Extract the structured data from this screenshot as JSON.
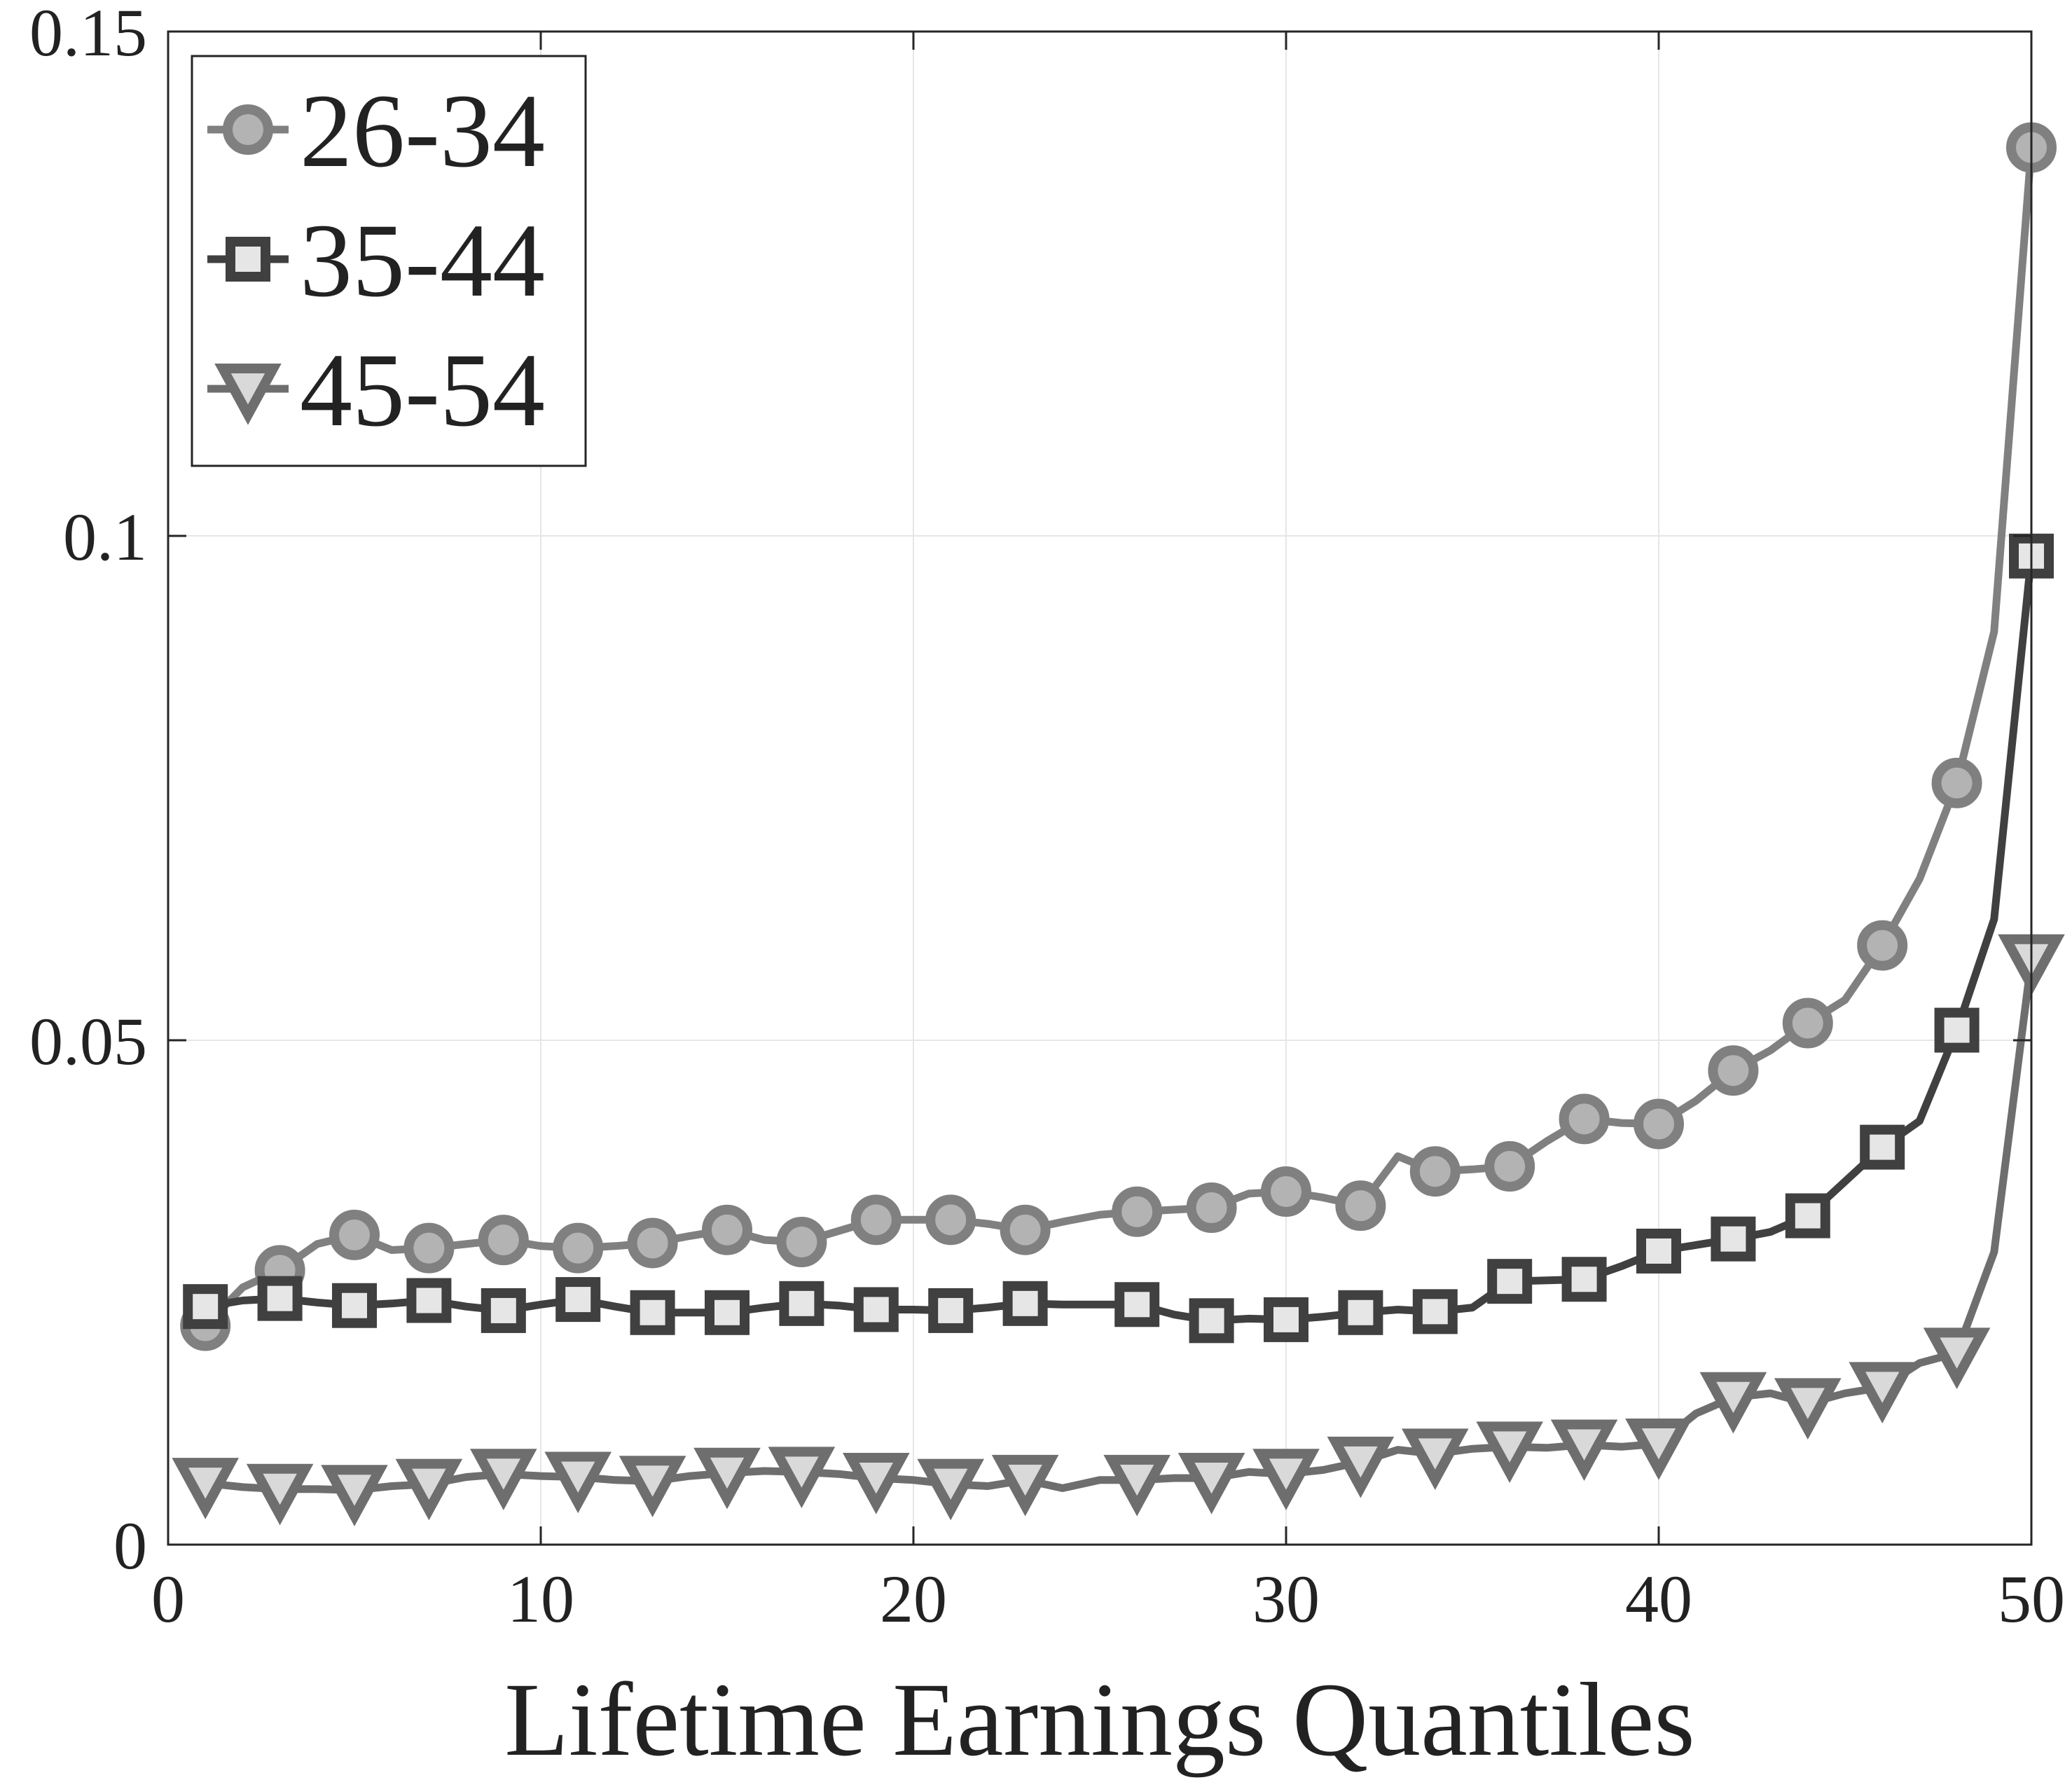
{
  "chart_data": {
    "type": "line",
    "xlabel": "Lifetime Earnings Quantiles",
    "ylabel": "",
    "title": "",
    "xlim": [
      0,
      50
    ],
    "ylim": [
      0,
      0.15
    ],
    "xticks": [
      0,
      10,
      20,
      30,
      40,
      50
    ],
    "xtick_labels": [
      "0",
      "10",
      "20",
      "30",
      "40",
      "50"
    ],
    "yticks": [
      0,
      0.05,
      0.1,
      0.15
    ],
    "ytick_labels": [
      "0",
      "0.05",
      "0.1",
      "0.15"
    ],
    "grid": true,
    "legend_position": "top-left",
    "series": [
      {
        "name": "26-34",
        "marker": "circle",
        "line_color": "#808080",
        "marker_fill": "#b3b3b3",
        "marker_edge": "#808080",
        "x": [
          1,
          2,
          3,
          4,
          5,
          6,
          7,
          8,
          9,
          10,
          11,
          12,
          13,
          14,
          15,
          16,
          17,
          18,
          19,
          20,
          21,
          22,
          23,
          24,
          25,
          26,
          27,
          28,
          29,
          30,
          31,
          32,
          33,
          34,
          35,
          36,
          37,
          38,
          39,
          40,
          41,
          42,
          43,
          44,
          45,
          46,
          47,
          48,
          49,
          50
        ],
        "y": [
          0.0217,
          0.0255,
          0.0272,
          0.0298,
          0.0307,
          0.0292,
          0.0294,
          0.0298,
          0.0302,
          0.0296,
          0.0294,
          0.0296,
          0.0299,
          0.0306,
          0.0312,
          0.0302,
          0.03,
          0.0311,
          0.0322,
          0.0322,
          0.0322,
          0.0318,
          0.0312,
          0.032,
          0.0327,
          0.033,
          0.0332,
          0.0334,
          0.0348,
          0.035,
          0.0344,
          0.0336,
          0.0385,
          0.037,
          0.0372,
          0.0375,
          0.04,
          0.0422,
          0.0418,
          0.0417,
          0.044,
          0.047,
          0.049,
          0.0517,
          0.054,
          0.0594,
          0.066,
          0.0755,
          0.0905,
          0.1385
        ],
        "marker_x": [
          1,
          3,
          5,
          7,
          9,
          11,
          13,
          15,
          17,
          19,
          21,
          23,
          26,
          28,
          30,
          32,
          34,
          36,
          38,
          40,
          42,
          44,
          46,
          48,
          50
        ],
        "marker_y": [
          0.0217,
          0.0272,
          0.0307,
          0.0294,
          0.0302,
          0.0294,
          0.0299,
          0.0312,
          0.03,
          0.0322,
          0.0322,
          0.0312,
          0.033,
          0.0334,
          0.035,
          0.0336,
          0.037,
          0.0375,
          0.0422,
          0.0417,
          0.047,
          0.0517,
          0.0594,
          0.0755,
          0.1385
        ]
      },
      {
        "name": "35-44",
        "marker": "square",
        "line_color": "#404040",
        "marker_fill": "#e6e6e6",
        "marker_edge": "#404040",
        "x": [
          1,
          2,
          3,
          4,
          5,
          6,
          7,
          8,
          9,
          10,
          11,
          12,
          13,
          14,
          15,
          16,
          17,
          18,
          19,
          20,
          21,
          22,
          23,
          24,
          25,
          26,
          27,
          28,
          29,
          30,
          31,
          32,
          33,
          34,
          35,
          36,
          37,
          38,
          39,
          40,
          41,
          42,
          43,
          44,
          45,
          46,
          47,
          48,
          49,
          50
        ],
        "y": [
          0.0236,
          0.0242,
          0.0244,
          0.024,
          0.0237,
          0.0239,
          0.0242,
          0.0236,
          0.0232,
          0.0238,
          0.0243,
          0.0236,
          0.023,
          0.023,
          0.023,
          0.0235,
          0.0239,
          0.0237,
          0.0233,
          0.0233,
          0.0232,
          0.0235,
          0.0239,
          0.0238,
          0.0238,
          0.0238,
          0.0228,
          0.0222,
          0.0224,
          0.0223,
          0.0226,
          0.023,
          0.0233,
          0.0231,
          0.0235,
          0.0261,
          0.0262,
          0.0263,
          0.0276,
          0.0291,
          0.0297,
          0.0303,
          0.031,
          0.0326,
          0.036,
          0.0394,
          0.042,
          0.051,
          0.062,
          0.098
        ],
        "marker_x": [
          1,
          3,
          5,
          7,
          9,
          11,
          13,
          15,
          17,
          19,
          21,
          23,
          26,
          28,
          30,
          32,
          34,
          36,
          38,
          40,
          42,
          44,
          46,
          48,
          50
        ],
        "marker_y": [
          0.0236,
          0.0244,
          0.0237,
          0.0242,
          0.0232,
          0.0243,
          0.023,
          0.023,
          0.0239,
          0.0233,
          0.0232,
          0.0239,
          0.0238,
          0.0222,
          0.0223,
          0.023,
          0.0231,
          0.0261,
          0.0263,
          0.0291,
          0.0303,
          0.0326,
          0.0394,
          0.051,
          0.098
        ]
      },
      {
        "name": "45-54",
        "marker": "triangle-down",
        "line_color": "#6e6e6e",
        "marker_fill": "#d9d9d9",
        "marker_edge": "#6e6e6e",
        "x": [
          1,
          2,
          3,
          4,
          5,
          6,
          7,
          8,
          9,
          10,
          11,
          12,
          13,
          14,
          15,
          16,
          17,
          18,
          19,
          20,
          21,
          22,
          23,
          24,
          25,
          26,
          27,
          28,
          29,
          30,
          31,
          32,
          33,
          34,
          35,
          36,
          37,
          38,
          39,
          40,
          41,
          42,
          43,
          44,
          45,
          46,
          47,
          48,
          49,
          50
        ],
        "y": [
          0.0061,
          0.0057,
          0.0055,
          0.0055,
          0.0054,
          0.0058,
          0.006,
          0.0067,
          0.007,
          0.0068,
          0.0067,
          0.0064,
          0.0063,
          0.0068,
          0.0071,
          0.0073,
          0.0072,
          0.007,
          0.0066,
          0.0064,
          0.006,
          0.0058,
          0.0064,
          0.0056,
          0.0064,
          0.0064,
          0.0066,
          0.0066,
          0.0072,
          0.007,
          0.0074,
          0.0082,
          0.0094,
          0.009,
          0.0095,
          0.0097,
          0.0096,
          0.0099,
          0.0097,
          0.01,
          0.013,
          0.0146,
          0.015,
          0.014,
          0.015,
          0.0156,
          0.018,
          0.019,
          0.029,
          0.058
        ],
        "marker_x": [
          1,
          3,
          5,
          7,
          9,
          11,
          13,
          15,
          17,
          19,
          21,
          23,
          26,
          28,
          30,
          32,
          34,
          36,
          38,
          40,
          42,
          44,
          46,
          48,
          50
        ],
        "marker_y": [
          0.0061,
          0.0055,
          0.0054,
          0.006,
          0.007,
          0.0067,
          0.0063,
          0.0071,
          0.0072,
          0.0066,
          0.006,
          0.0064,
          0.0064,
          0.0066,
          0.007,
          0.0082,
          0.009,
          0.0097,
          0.0099,
          0.01,
          0.0146,
          0.014,
          0.0156,
          0.019,
          0.058
        ]
      }
    ]
  }
}
